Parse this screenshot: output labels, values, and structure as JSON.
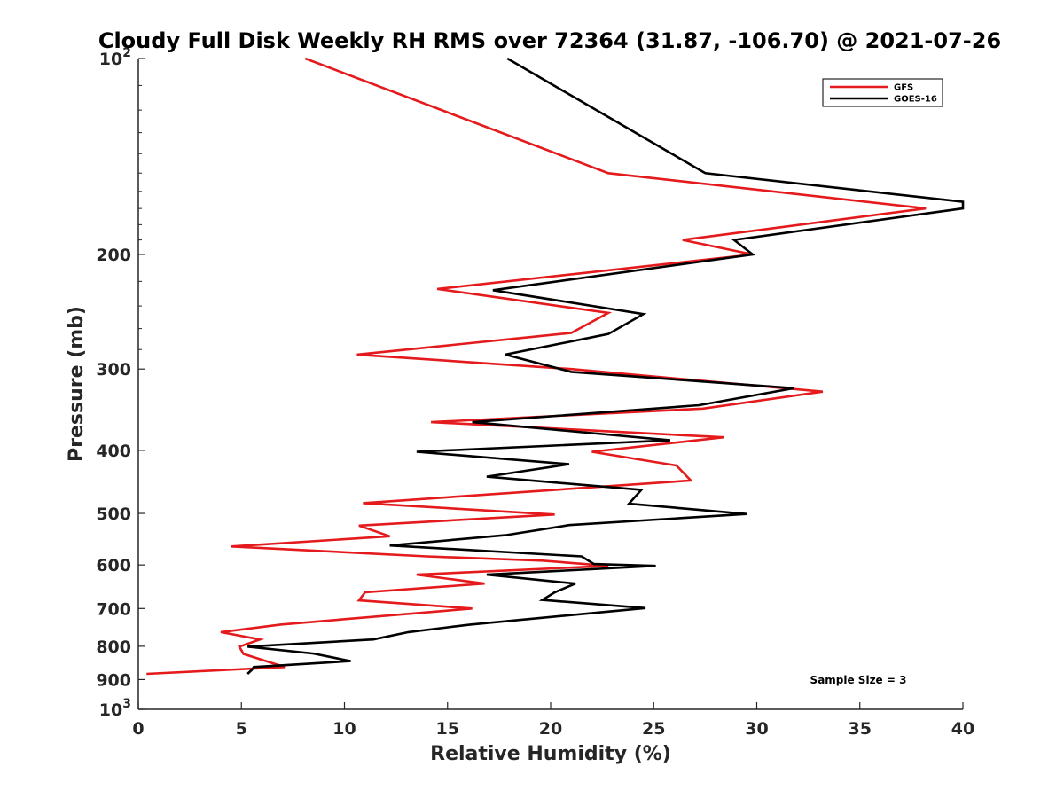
{
  "chart_data": {
    "type": "line",
    "title": "Cloudy Full Disk Weekly RH RMS over 72364 (31.87, -106.70) @ 2021-07-26",
    "xlabel": "Relative Humidity (%)",
    "ylabel": "Pressure (mb)",
    "xlim": [
      0,
      40
    ],
    "ylim": [
      100,
      1000
    ],
    "yscale": "log",
    "y_reversed": true,
    "grid": false,
    "legend_position": "top-right",
    "x_ticks": [
      "0",
      "5",
      "10",
      "15",
      "20",
      "25",
      "30",
      "35",
      "40"
    ],
    "y_ticks": [
      {
        "value": 100,
        "base": "10",
        "exp": "2"
      },
      {
        "value": 200,
        "label": "200"
      },
      {
        "value": 300,
        "label": "300"
      },
      {
        "value": 400,
        "label": "400"
      },
      {
        "value": 500,
        "label": "500"
      },
      {
        "value": 600,
        "label": "600"
      },
      {
        "value": 700,
        "label": "700"
      },
      {
        "value": 800,
        "label": "800"
      },
      {
        "value": 900,
        "label": "900"
      },
      {
        "value": 1000,
        "base": "10",
        "exp": "3"
      }
    ],
    "series": [
      {
        "name": "GFS",
        "color": "#e41a1c",
        "points": [
          [
            8.1,
            100
          ],
          [
            22.8,
            150
          ],
          [
            38.2,
            170
          ],
          [
            26.4,
            190
          ],
          [
            29.8,
            200
          ],
          [
            14.5,
            226
          ],
          [
            22.8,
            246
          ],
          [
            21.0,
            264
          ],
          [
            10.6,
            285
          ],
          [
            21.0,
            300
          ],
          [
            33.2,
            325
          ],
          [
            27.4,
            345
          ],
          [
            14.2,
            362
          ],
          [
            28.4,
            382
          ],
          [
            22.0,
            402
          ],
          [
            26.1,
            422
          ],
          [
            26.8,
            445
          ],
          [
            10.9,
            482
          ],
          [
            20.2,
            502
          ],
          [
            10.7,
            522
          ],
          [
            12.2,
            542
          ],
          [
            4.5,
            562
          ],
          [
            14.0,
            582
          ],
          [
            19.6,
            591
          ],
          [
            22.8,
            602
          ],
          [
            13.5,
            621
          ],
          [
            16.8,
            641
          ],
          [
            11.0,
            661
          ],
          [
            10.7,
            680
          ],
          [
            16.2,
            700
          ],
          [
            6.9,
            741
          ],
          [
            4.0,
            761
          ],
          [
            5.9,
            781
          ],
          [
            4.9,
            801
          ],
          [
            5.1,
            822
          ],
          [
            6.2,
            843
          ],
          [
            7.1,
            861
          ],
          [
            0.4,
            882
          ]
        ]
      },
      {
        "name": "GOES-16",
        "color": "#000000",
        "points": [
          [
            17.9,
            100
          ],
          [
            27.5,
            150
          ],
          [
            40.0,
            166
          ],
          [
            40.0,
            170
          ],
          [
            28.9,
            190
          ],
          [
            29.8,
            200
          ],
          [
            17.2,
            227
          ],
          [
            24.5,
            247
          ],
          [
            22.8,
            265
          ],
          [
            17.8,
            285
          ],
          [
            21.0,
            303
          ],
          [
            31.8,
            321
          ],
          [
            27.2,
            341
          ],
          [
            16.2,
            362
          ],
          [
            25.8,
            386
          ],
          [
            13.5,
            402
          ],
          [
            20.9,
            420
          ],
          [
            16.9,
            439
          ],
          [
            24.4,
            460
          ],
          [
            23.8,
            483
          ],
          [
            29.5,
            501
          ],
          [
            20.9,
            521
          ],
          [
            17.8,
            540
          ],
          [
            12.2,
            560
          ],
          [
            21.5,
            582
          ],
          [
            22.1,
            598
          ],
          [
            25.1,
            602
          ],
          [
            16.9,
            621
          ],
          [
            21.2,
            641
          ],
          [
            20.2,
            661
          ],
          [
            19.6,
            679
          ],
          [
            24.6,
            699
          ],
          [
            16.1,
            741
          ],
          [
            13.1,
            761
          ],
          [
            11.4,
            781
          ],
          [
            5.3,
            801
          ],
          [
            8.5,
            821
          ],
          [
            10.3,
            843
          ],
          [
            5.6,
            861
          ],
          [
            5.5,
            870
          ],
          [
            5.3,
            882
          ]
        ]
      }
    ],
    "annotation": "Sample Size = 3"
  }
}
